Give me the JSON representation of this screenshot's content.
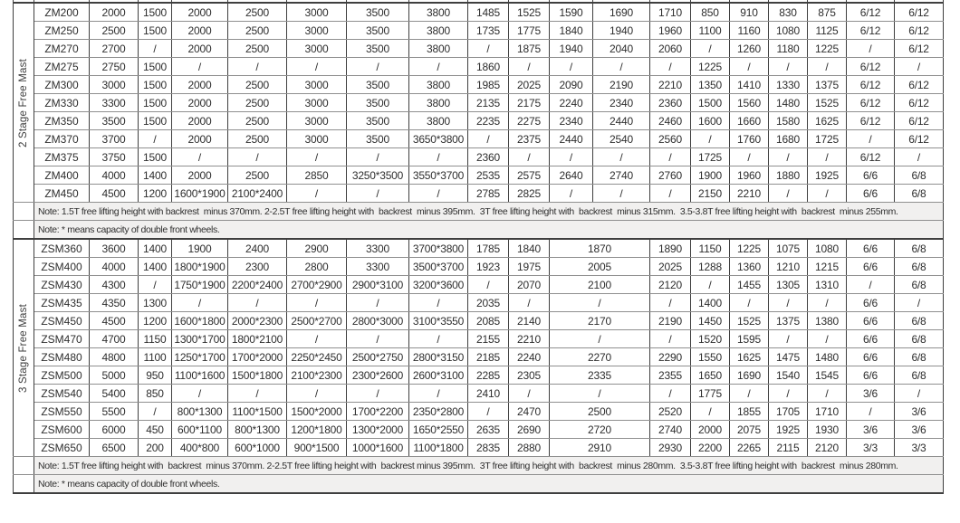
{
  "colors": {
    "note_background": "#f1f0ef",
    "border_dark": "#3f3f3f",
    "border_light": "#8f8f8f",
    "text": "#2e2e2e"
  },
  "table": {
    "sections": [
      {
        "id": "two-stage",
        "label": "2 Stage Free Mast",
        "merge_value_index": null,
        "rows": [
          {
            "model": "ZM200",
            "values": [
              "2000",
              "1500",
              "2000",
              "2500",
              "3000",
              "3500",
              "3800",
              "1485",
              "1525",
              "1590",
              "1690",
              "1710",
              "850",
              "910",
              "830",
              "875",
              "6/12",
              "6/12"
            ]
          },
          {
            "model": "ZM250",
            "values": [
              "2500",
              "1500",
              "2000",
              "2500",
              "3000",
              "3500",
              "3800",
              "1735",
              "1775",
              "1840",
              "1940",
              "1960",
              "1100",
              "1160",
              "1080",
              "1125",
              "6/12",
              "6/12"
            ]
          },
          {
            "model": "ZM270",
            "values": [
              "2700",
              "/",
              "2000",
              "2500",
              "3000",
              "3500",
              "3800",
              "/",
              "1875",
              "1940",
              "2040",
              "2060",
              "/",
              "1260",
              "1180",
              "1225",
              "/",
              "6/12"
            ]
          },
          {
            "model": "ZM275",
            "values": [
              "2750",
              "1500",
              "/",
              "/",
              "/",
              "/",
              "/",
              "1860",
              "/",
              "/",
              "/",
              "/",
              "1225",
              "/",
              "/",
              "/",
              "6/12",
              "/"
            ]
          },
          {
            "model": "ZM300",
            "values": [
              "3000",
              "1500",
              "2000",
              "2500",
              "3000",
              "3500",
              "3800",
              "1985",
              "2025",
              "2090",
              "2190",
              "2210",
              "1350",
              "1410",
              "1330",
              "1375",
              "6/12",
              "6/12"
            ]
          },
          {
            "model": "ZM330",
            "values": [
              "3300",
              "1500",
              "2000",
              "2500",
              "3000",
              "3500",
              "3800",
              "2135",
              "2175",
              "2240",
              "2340",
              "2360",
              "1500",
              "1560",
              "1480",
              "1525",
              "6/12",
              "6/12"
            ]
          },
          {
            "model": "ZM350",
            "values": [
              "3500",
              "1500",
              "2000",
              "2500",
              "3000",
              "3500",
              "3800",
              "2235",
              "2275",
              "2340",
              "2440",
              "2460",
              "1600",
              "1660",
              "1580",
              "1625",
              "6/12",
              "6/12"
            ]
          },
          {
            "model": "ZM370",
            "values": [
              "3700",
              "/",
              "2000",
              "2500",
              "3000",
              "3500",
              "3650*3800",
              "/",
              "2375",
              "2440",
              "2540",
              "2560",
              "/",
              "1760",
              "1680",
              "1725",
              "/",
              "6/12"
            ]
          },
          {
            "model": "ZM375",
            "values": [
              "3750",
              "1500",
              "/",
              "/",
              "/",
              "/",
              "/",
              "2360",
              "/",
              "/",
              "/",
              "/",
              "1725",
              "/",
              "/",
              "/",
              "6/12",
              "/"
            ]
          },
          {
            "model": "ZM400",
            "values": [
              "4000",
              "1400",
              "2000",
              "2500",
              "2850",
              "3250*3500",
              "3550*3700",
              "2535",
              "2575",
              "2640",
              "2740",
              "2760",
              "1900",
              "1960",
              "1880",
              "1925",
              "6/6",
              "6/8"
            ]
          },
          {
            "model": "ZM450",
            "values": [
              "4500",
              "1200",
              "1600*1900",
              "2100*2400",
              "/",
              "/",
              "/",
              "2785",
              "2825",
              "/",
              "/",
              "/",
              "2150",
              "2210",
              "/",
              "/",
              "6/6",
              "6/8"
            ]
          }
        ],
        "notes": [
          "Note: 1.5T free lifting height with backrest  minus 370mm. 2-2.5T free lifting height with  backrest  minus 395mm.  3T free lifting height with  backrest  minus 315mm.  3.5-3.8T free lifting height with  backrest  minus 255mm.",
          "Note: * means capacity of double front wheels."
        ]
      },
      {
        "id": "three-stage",
        "label": "3 Stage Free Mast",
        "merge_value_index": 9,
        "rows": [
          {
            "model": "ZSM360",
            "values": [
              "3600",
              "1400",
              "1900",
              "2400",
              "2900",
              "3300",
              "3700*3800",
              "1785",
              "1840",
              "1870",
              "1890",
              "1150",
              "1225",
              "1075",
              "1080",
              "6/6",
              "6/8"
            ]
          },
          {
            "model": "ZSM400",
            "values": [
              "4000",
              "1400",
              "1800*1900",
              "2300",
              "2800",
              "3300",
              "3500*3700",
              "1923",
              "1975",
              "2005",
              "2025",
              "1288",
              "1360",
              "1210",
              "1215",
              "6/6",
              "6/8"
            ]
          },
          {
            "model": "ZSM430",
            "values": [
              "4300",
              "/",
              "1750*1900",
              "2200*2400",
              "2700*2900",
              "2900*3100",
              "3200*3600",
              "/",
              "2070",
              "2100",
              "2120",
              "/",
              "1455",
              "1305",
              "1310",
              "/",
              "6/8"
            ]
          },
          {
            "model": "ZSM435",
            "values": [
              "4350",
              "1300",
              "/",
              "/",
              "/",
              "/",
              "/",
              "2035",
              "/",
              "/",
              "/",
              "1400",
              "/",
              "/",
              "/",
              "6/6",
              "/"
            ]
          },
          {
            "model": "ZSM450",
            "values": [
              "4500",
              "1200",
              "1600*1800",
              "2000*2300",
              "2500*2700",
              "2800*3000",
              "3100*3550",
              "2085",
              "2140",
              "2170",
              "2190",
              "1450",
              "1525",
              "1375",
              "1380",
              "6/6",
              "6/8"
            ]
          },
          {
            "model": "ZSM470",
            "values": [
              "4700",
              "1150",
              "1300*1700",
              "1800*2100",
              "/",
              "/",
              "/",
              "2155",
              "2210",
              "/",
              "/",
              "1520",
              "1595",
              "/",
              "/",
              "6/6",
              "6/8"
            ]
          },
          {
            "model": "ZSM480",
            "values": [
              "4800",
              "1100",
              "1250*1700",
              "1700*2000",
              "2250*2450",
              "2500*2750",
              "2800*3150",
              "2185",
              "2240",
              "2270",
              "2290",
              "1550",
              "1625",
              "1475",
              "1480",
              "6/6",
              "6/8"
            ]
          },
          {
            "model": "ZSM500",
            "values": [
              "5000",
              "950",
              "1100*1600",
              "1500*1800",
              "2100*2300",
              "2300*2600",
              "2600*3100",
              "2285",
              "2305",
              "2335",
              "2355",
              "1650",
              "1690",
              "1540",
              "1545",
              "6/6",
              "6/8"
            ]
          },
          {
            "model": "ZSM540",
            "values": [
              "5400",
              "850",
              "/",
              "/",
              "/",
              "/",
              "/",
              "2410",
              "/",
              "/",
              "/",
              "1775",
              "/",
              "/",
              "/",
              "3/6",
              "/"
            ]
          },
          {
            "model": "ZSM550",
            "values": [
              "5500",
              "/",
              "800*1300",
              "1100*1500",
              "1500*2000",
              "1700*2200",
              "2350*2800",
              "/",
              "2470",
              "2500",
              "2520",
              "/",
              "1855",
              "1705",
              "1710",
              "/",
              "3/6"
            ]
          },
          {
            "model": "ZSM600",
            "values": [
              "6000",
              "450",
              "600*1100",
              "800*1300",
              "1200*1800",
              "1300*2000",
              "1650*2550",
              "2635",
              "2690",
              "2720",
              "2740",
              "2000",
              "2075",
              "1925",
              "1930",
              "3/6",
              "3/6"
            ]
          },
          {
            "model": "ZSM650",
            "values": [
              "6500",
              "200",
              "400*800",
              "600*1000",
              "900*1500",
              "1000*1600",
              "1100*1800",
              "2835",
              "2880",
              "2910",
              "2930",
              "2200",
              "2265",
              "2115",
              "2120",
              "3/3",
              "3/3"
            ]
          }
        ],
        "notes": [
          "Note: 1.5T free lifting height with  backrest  minus 370mm. 2-2.5T free lifting height with  backrest minus 395mm.  3T free lifting height with  backrest  minus 280mm.  3.5-3.8T free lifting height with  backrest  minus 280mm.",
          "Note: * means capacity of double front wheels."
        ]
      }
    ]
  }
}
